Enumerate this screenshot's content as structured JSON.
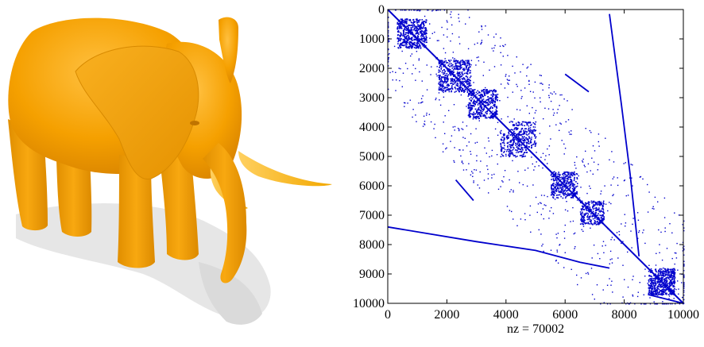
{
  "figure": {
    "left_panel": {
      "subject": "elephant-mesh",
      "color": "#F5A000"
    }
  },
  "chart_data": {
    "type": "scatter",
    "subtype": "sparsity-pattern",
    "title": "",
    "xlabel": "nz = 70002",
    "ylabel": "",
    "xlim": [
      0,
      10000
    ],
    "ylim": [
      0,
      10000
    ],
    "y_reversed": true,
    "x_ticks": [
      0,
      2000,
      4000,
      6000,
      8000,
      10000
    ],
    "y_ticks": [
      0,
      1000,
      2000,
      3000,
      4000,
      5000,
      6000,
      7000,
      8000,
      9000,
      10000
    ],
    "grid": false,
    "legend": "none",
    "color": "#0000CC",
    "bands": [
      {
        "name": "main-diagonal",
        "points": [
          [
            0,
            0
          ],
          [
            10000,
            10000
          ]
        ]
      },
      {
        "name": "lower-band",
        "points": [
          [
            0,
            7400
          ],
          [
            3000,
            7900
          ],
          [
            5000,
            8200
          ],
          [
            6500,
            8600
          ],
          [
            7500,
            8800
          ]
        ]
      },
      {
        "name": "upper-band",
        "points": [
          [
            7500,
            150
          ],
          [
            7900,
            3200
          ],
          [
            8200,
            5600
          ],
          [
            8500,
            8400
          ]
        ]
      },
      {
        "name": "short-segment-1",
        "points": [
          [
            6000,
            2200
          ],
          [
            6800,
            2800
          ]
        ]
      },
      {
        "name": "short-segment-2",
        "points": [
          [
            2300,
            5800
          ],
          [
            2900,
            6500
          ]
        ]
      },
      {
        "name": "bottom-right-cluster",
        "points": [
          [
            8800,
            9700
          ],
          [
            10000,
            10000
          ]
        ]
      }
    ],
    "clusters": [
      {
        "name": "block-1",
        "x": [
          300,
          1300
        ],
        "y": [
          300,
          1300
        ],
        "density": 0.06
      },
      {
        "name": "block-2",
        "x": [
          1700,
          2800
        ],
        "y": [
          1700,
          2800
        ],
        "density": 0.05
      },
      {
        "name": "block-3",
        "x": [
          2700,
          3700
        ],
        "y": [
          2700,
          3700
        ],
        "density": 0.05
      },
      {
        "name": "block-4",
        "x": [
          4100,
          5000
        ],
        "y": [
          3800,
          4700
        ],
        "density": 0.06
      },
      {
        "name": "block-5",
        "x": [
          5500,
          6400
        ],
        "y": [
          5500,
          6400
        ],
        "density": 0.05
      },
      {
        "name": "block-6",
        "x": [
          6500,
          7300
        ],
        "y": [
          6500,
          7300
        ],
        "density": 0.05
      },
      {
        "name": "block-7",
        "x": [
          8800,
          9700
        ],
        "y": [
          8800,
          9700
        ],
        "density": 0.08
      }
    ]
  }
}
